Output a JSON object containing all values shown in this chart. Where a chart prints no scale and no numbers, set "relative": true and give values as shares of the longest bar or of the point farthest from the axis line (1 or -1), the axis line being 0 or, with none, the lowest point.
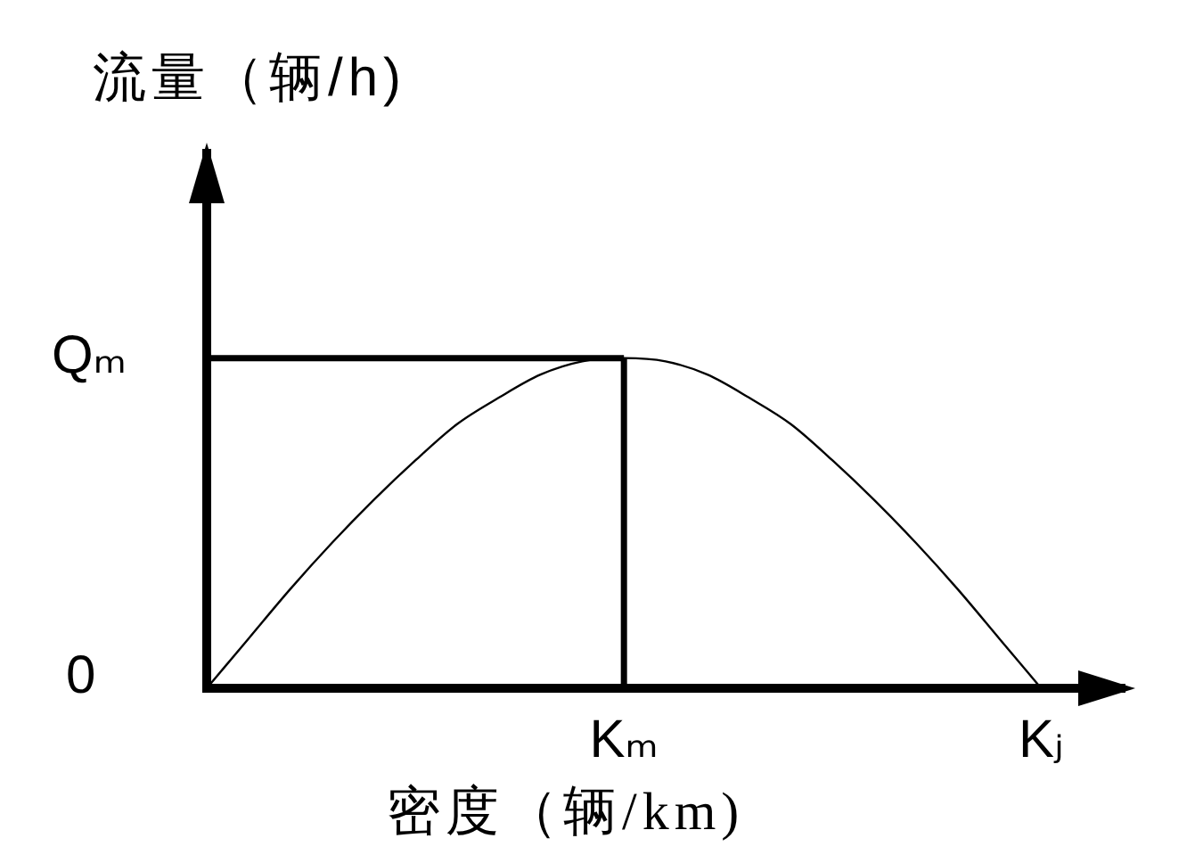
{
  "chart_data": {
    "type": "line",
    "relative": true,
    "xlabel": "密度（辆/km)",
    "ylabel": "流量（辆/h)",
    "categories": [
      null,
      null,
      null,
      null,
      null,
      null,
      null,
      null,
      null,
      null,
      "Kₘ",
      null,
      null,
      null,
      null,
      null,
      null,
      null,
      null,
      null,
      "Kⱼ"
    ],
    "series": [
      {
        "color": "#000000",
        "values": [
          0,
          0.15,
          0.3,
          0.44,
          0.57,
          0.69,
          0.8,
          0.88,
          0.95,
          0.99,
          1,
          0.99,
          0.95,
          0.88,
          0.8,
          0.69,
          0.57,
          0.44,
          0.3,
          0.15,
          0
        ]
      }
    ],
    "ref_lines": [
      {
        "axis": "y",
        "value": 1,
        "label": "Qₘ",
        "color": "#000000"
      },
      {
        "axis": "x",
        "value": "Kₘ",
        "color": "#000000"
      }
    ],
    "annotations": [
      "0"
    ],
    "grid": false,
    "legend": false,
    "marker": "none"
  }
}
